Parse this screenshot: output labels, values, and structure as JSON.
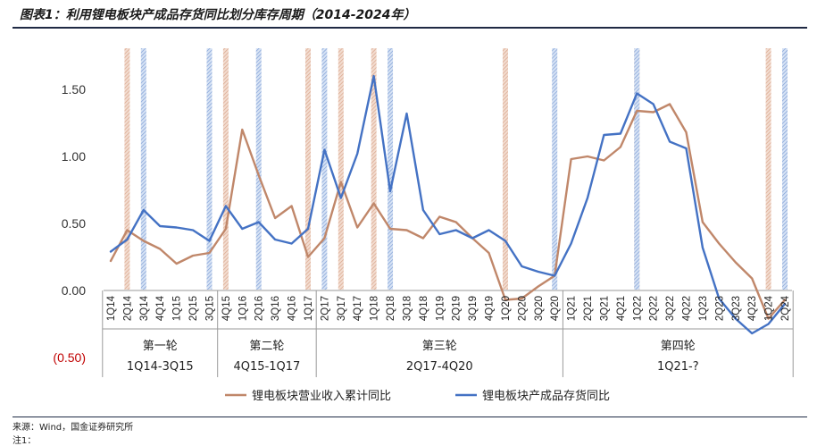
{
  "title": "图表1：利用锂电板块产成品存货同比划分库存周期（2014-2024年）",
  "source": "来源：Wind，国金证券研究所",
  "note": "注1：",
  "chart_data": {
    "type": "line",
    "categories": [
      "1Q14",
      "2Q14",
      "3Q14",
      "4Q14",
      "1Q15",
      "2Q15",
      "3Q15",
      "4Q15",
      "1Q16",
      "2Q16",
      "3Q16",
      "4Q16",
      "1Q17",
      "2Q17",
      "3Q17",
      "4Q17",
      "1Q18",
      "2Q18",
      "3Q18",
      "4Q18",
      "1Q19",
      "2Q19",
      "3Q19",
      "4Q19",
      "1Q20",
      "2Q20",
      "3Q20",
      "4Q20",
      "1Q21",
      "2Q21",
      "3Q21",
      "4Q21",
      "1Q22",
      "2Q22",
      "3Q22",
      "4Q22",
      "1Q23",
      "2Q23",
      "3Q23",
      "4Q23",
      "1Q24",
      "2Q24"
    ],
    "series": [
      {
        "name": "锂电板块营业收入累计同比",
        "color": "#c0876a",
        "values": [
          0.22,
          0.45,
          0.37,
          0.31,
          0.2,
          0.26,
          0.28,
          0.46,
          1.2,
          0.86,
          0.54,
          0.63,
          0.25,
          0.39,
          0.81,
          0.47,
          0.65,
          0.46,
          0.45,
          0.39,
          0.55,
          0.51,
          0.39,
          0.28,
          -0.07,
          -0.06,
          0.03,
          0.11,
          0.98,
          1.0,
          0.97,
          1.07,
          1.34,
          1.33,
          1.39,
          1.18,
          0.51,
          0.35,
          0.21,
          0.09,
          -0.21,
          -0.07
        ]
      },
      {
        "name": "锂电板块产成品存货同比",
        "color": "#4472c4",
        "values": [
          0.29,
          0.38,
          0.6,
          0.48,
          0.47,
          0.45,
          0.37,
          0.63,
          0.46,
          0.51,
          0.38,
          0.35,
          0.46,
          1.05,
          0.69,
          1.02,
          1.6,
          0.74,
          1.32,
          0.6,
          0.42,
          0.45,
          0.39,
          0.45,
          0.37,
          0.18,
          0.14,
          0.11,
          0.35,
          0.69,
          1.16,
          1.17,
          1.47,
          1.39,
          1.11,
          1.06,
          0.32,
          -0.06,
          -0.21,
          -0.32,
          -0.25,
          -0.1
        ]
      }
    ],
    "y_ticks": [
      {
        "value": 1.5,
        "label": "1.50"
      },
      {
        "value": 1.0,
        "label": "1.00"
      },
      {
        "value": 0.5,
        "label": "0.50"
      },
      {
        "value": 0.0,
        "label": "0.00"
      },
      {
        "value": -0.5,
        "label": "(0.50)"
      }
    ],
    "ylim": [
      -0.5,
      1.75
    ],
    "markers": {
      "orange_hatched_bands": [
        1,
        7,
        12,
        14,
        16,
        24,
        32,
        40
      ],
      "blue_hatched_bands": [
        2,
        6,
        9,
        13,
        17,
        27,
        32,
        41
      ]
    },
    "cycles": [
      {
        "name": "第一轮",
        "range": "1Q14-3Q15",
        "start": 0,
        "end": 6
      },
      {
        "name": "第二轮",
        "range": "4Q15-1Q17",
        "start": 7,
        "end": 12
      },
      {
        "name": "第三轮",
        "range": "2Q17-4Q20",
        "start": 13,
        "end": 27
      },
      {
        "name": "第四轮",
        "range": "1Q21-?",
        "start": 28,
        "end": 41
      }
    ],
    "legend": "bottom-center",
    "grid": false
  }
}
